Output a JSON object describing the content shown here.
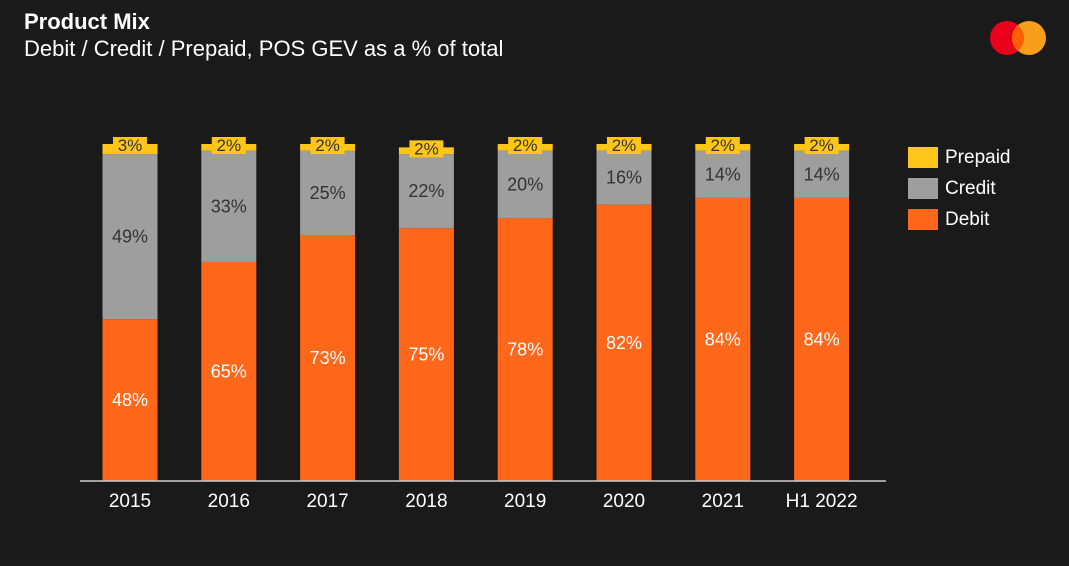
{
  "title": "Product Mix",
  "subtitle": "Debit / Credit / Prepaid, POS GEV as a % of total",
  "logo_icon": "mastercard-logo-icon",
  "colors": {
    "background": "#1a1a1a",
    "Debit": "#ff671b",
    "Credit": "#9e9e9e",
    "Prepaid": "#ffc619",
    "logo_red": "#eb001b",
    "logo_orange": "#f79e1b",
    "logo_overlap": "#ff5f00",
    "axis": "#cccccc",
    "text_light": "#ffffff",
    "text_dark": "#333333"
  },
  "legend": [
    {
      "name": "Prepaid",
      "color": "#ffc619"
    },
    {
      "name": "Credit",
      "color": "#9e9e9e"
    },
    {
      "name": "Debit",
      "color": "#ff671b"
    }
  ],
  "chart_data": {
    "type": "bar",
    "stacked": true,
    "categories": [
      "2015",
      "2016",
      "2017",
      "2018",
      "2019",
      "2020",
      "2021",
      "H1 2022"
    ],
    "series": [
      {
        "name": "Debit",
        "values": [
          48,
          65,
          73,
          75,
          78,
          82,
          84,
          84
        ],
        "labels": [
          "48%",
          "65%",
          "73%",
          "75%",
          "78%",
          "82%",
          "84%",
          "84%"
        ]
      },
      {
        "name": "Credit",
        "values": [
          49,
          33,
          25,
          22,
          20,
          16,
          14,
          14
        ],
        "labels": [
          "49%",
          "33%",
          "25%",
          "22%",
          "20%",
          "16%",
          "14%",
          "14%"
        ]
      },
      {
        "name": "Prepaid",
        "values": [
          3,
          2,
          2,
          2,
          2,
          2,
          2,
          2
        ],
        "labels": [
          "3%",
          "2%",
          "2%",
          "2%",
          "2%",
          "2%",
          "2%",
          "2%"
        ]
      }
    ],
    "title": "Product Mix",
    "subtitle": "Debit / Credit / Prepaid, POS GEV as a % of total",
    "xlabel": "",
    "ylabel": "",
    "ylim": [
      0,
      100
    ],
    "grid": false,
    "legend_position": "right"
  }
}
